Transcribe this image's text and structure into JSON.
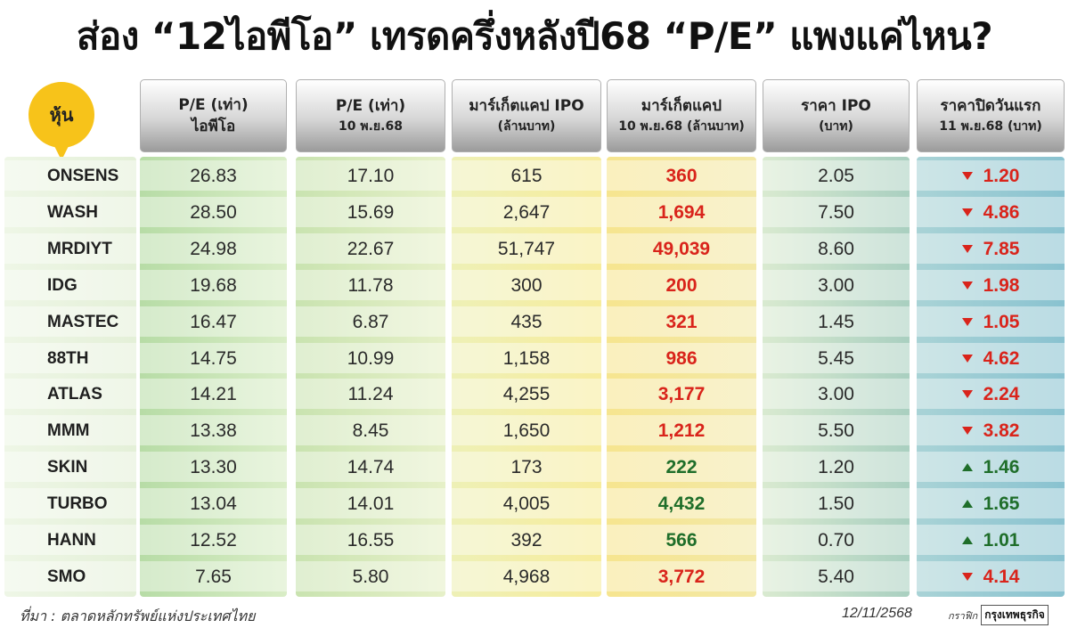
{
  "title": "ส่อง “12ไอพีโอ” เทรดครึ่งหลังปี68 “P/E” แพงแค่ไหน?",
  "badge_label": "หุ้น",
  "headers": [
    {
      "line1": "P/E (เท่า)",
      "line2": "ไอพีโอ"
    },
    {
      "line1": "P/E (เท่า)",
      "line2": "10 พ.ย.68"
    },
    {
      "line1": "มาร์เก็ตแคป IPO",
      "line2": "(ล้านบาท)"
    },
    {
      "line1": "มาร์เก็ตแคป",
      "line2": "10 พ.ย.68 (ล้านบาท)"
    },
    {
      "line1": "ราคา IPO",
      "line2": "(บาท)"
    },
    {
      "line1": "ราคาปิดวันแรก",
      "line2": "11 พ.ย.68 (บาท)"
    }
  ],
  "colors": {
    "down": "#d9241b",
    "up": "#1f6e2a",
    "badge": "#f7c31a"
  },
  "rows": [
    {
      "name": "ONSENS",
      "pe_ipo": "26.83",
      "pe_now": "17.10",
      "mcap_ipo": "615",
      "mcap_now": "360",
      "ipo_price": "2.05",
      "close": "1.20",
      "dir": "down"
    },
    {
      "name": "WASH",
      "pe_ipo": "28.50",
      "pe_now": "15.69",
      "mcap_ipo": "2,647",
      "mcap_now": "1,694",
      "ipo_price": "7.50",
      "close": "4.86",
      "dir": "down"
    },
    {
      "name": "MRDIYT",
      "pe_ipo": "24.98",
      "pe_now": "22.67",
      "mcap_ipo": "51,747",
      "mcap_now": "49,039",
      "ipo_price": "8.60",
      "close": "7.85",
      "dir": "down"
    },
    {
      "name": "IDG",
      "pe_ipo": "19.68",
      "pe_now": "11.78",
      "mcap_ipo": "300",
      "mcap_now": "200",
      "ipo_price": "3.00",
      "close": "1.98",
      "dir": "down"
    },
    {
      "name": "MASTEC",
      "pe_ipo": "16.47",
      "pe_now": "6.87",
      "mcap_ipo": "435",
      "mcap_now": "321",
      "ipo_price": "1.45",
      "close": "1.05",
      "dir": "down"
    },
    {
      "name": "88TH",
      "pe_ipo": "14.75",
      "pe_now": "10.99",
      "mcap_ipo": "1,158",
      "mcap_now": "986",
      "ipo_price": "5.45",
      "close": "4.62",
      "dir": "down"
    },
    {
      "name": "ATLAS",
      "pe_ipo": "14.21",
      "pe_now": "11.24",
      "mcap_ipo": "4,255",
      "mcap_now": "3,177",
      "ipo_price": "3.00",
      "close": "2.24",
      "dir": "down"
    },
    {
      "name": "MMM",
      "pe_ipo": "13.38",
      "pe_now": "8.45",
      "mcap_ipo": "1,650",
      "mcap_now": "1,212",
      "ipo_price": "5.50",
      "close": "3.82",
      "dir": "down"
    },
    {
      "name": "SKIN",
      "pe_ipo": "13.30",
      "pe_now": "14.74",
      "mcap_ipo": "173",
      "mcap_now": "222",
      "ipo_price": "1.20",
      "close": "1.46",
      "dir": "up"
    },
    {
      "name": "TURBO",
      "pe_ipo": "13.04",
      "pe_now": "14.01",
      "mcap_ipo": "4,005",
      "mcap_now": "4,432",
      "ipo_price": "1.50",
      "close": "1.65",
      "dir": "up"
    },
    {
      "name": "HANN",
      "pe_ipo": "12.52",
      "pe_now": "16.55",
      "mcap_ipo": "392",
      "mcap_now": "566",
      "ipo_price": "0.70",
      "close": "1.01",
      "dir": "up"
    },
    {
      "name": "SMO",
      "pe_ipo": "7.65",
      "pe_now": "5.80",
      "mcap_ipo": "4,968",
      "mcap_now": "3,772",
      "ipo_price": "5.40",
      "close": "4.14",
      "dir": "down"
    }
  ],
  "footer": {
    "source": "ที่มา : ตลาดหลักทรัพย์แห่งประเทศไทย",
    "date": "12/11/2568",
    "graphic_label": "กราฟิก",
    "brand": "กรุงเทพธุรกิจ"
  }
}
